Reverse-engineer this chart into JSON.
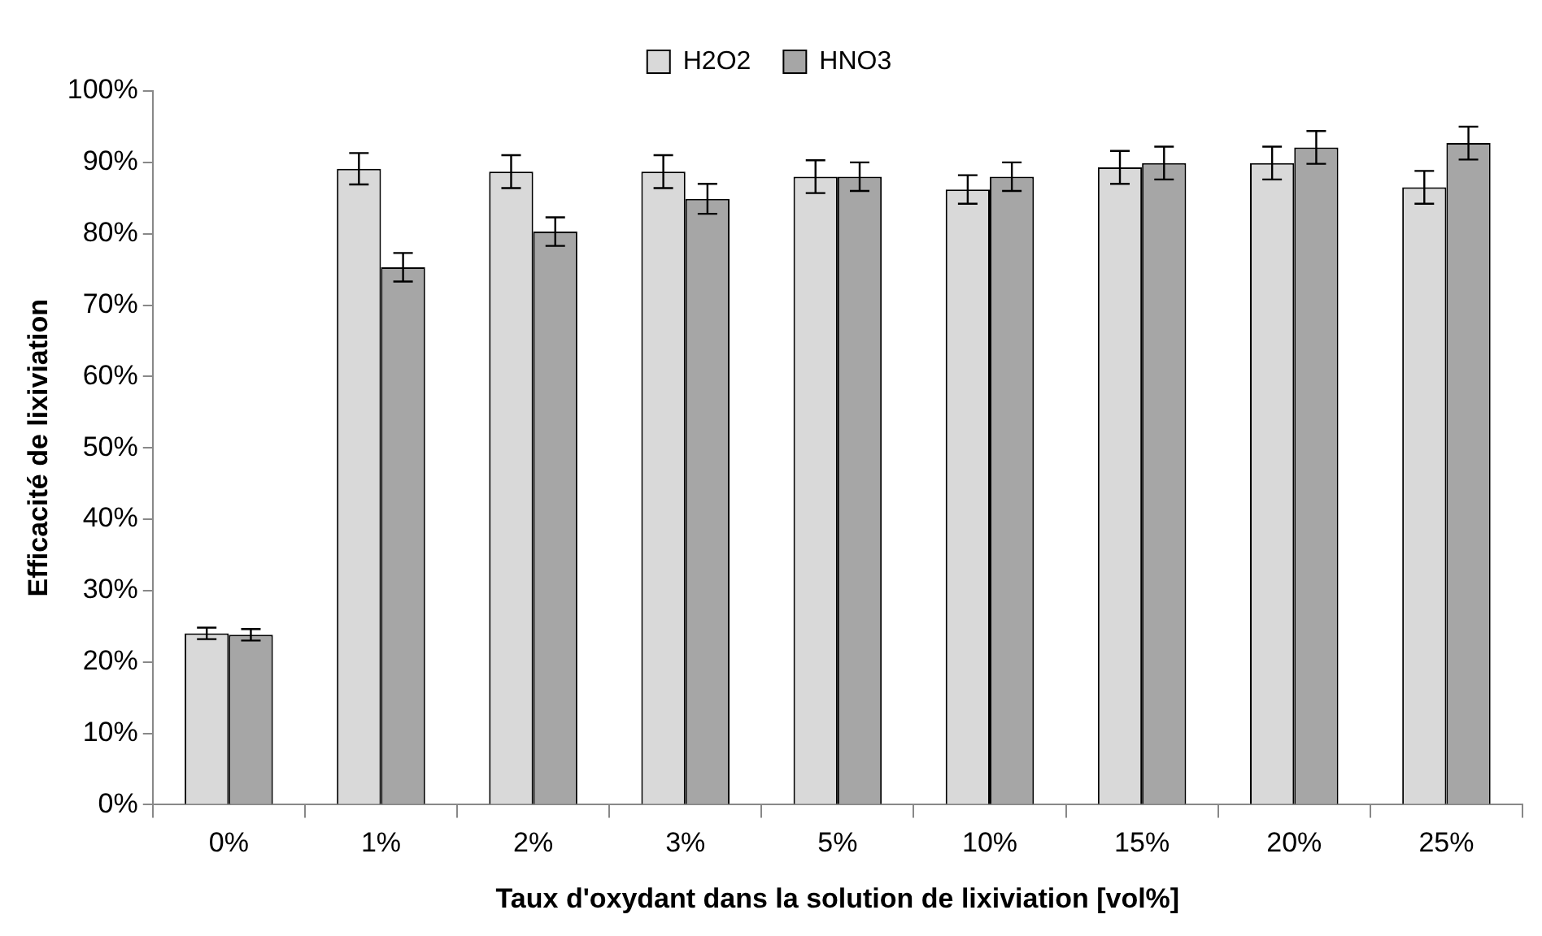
{
  "chart_data": {
    "type": "bar",
    "xlabel": "Taux d'oxydant dans la solution de lixiviation [vol%]",
    "ylabel": "Efficacité de lixiviation",
    "categories": [
      "0%",
      "1%",
      "2%",
      "3%",
      "5%",
      "10%",
      "15%",
      "20%",
      "25%"
    ],
    "series": [
      {
        "name": "H2O2",
        "color": "#d9d9d9",
        "values": [
          24.0,
          89.1,
          88.7,
          88.7,
          88.0,
          86.2,
          89.3,
          89.9,
          86.5
        ],
        "errors": [
          0.8,
          2.2,
          2.3,
          2.3,
          2.3,
          2.0,
          2.3,
          2.3,
          2.3
        ]
      },
      {
        "name": "HNO3",
        "color": "#a6a6a6",
        "values": [
          23.8,
          75.3,
          80.3,
          84.9,
          88.0,
          88.0,
          89.9,
          92.1,
          92.7
        ],
        "errors": [
          0.8,
          2.0,
          2.0,
          2.1,
          2.0,
          2.0,
          2.3,
          2.3,
          2.3
        ]
      }
    ],
    "ylim": [
      0,
      100
    ],
    "yticks": [
      {
        "value": 0,
        "label": "0%"
      },
      {
        "value": 10,
        "label": "10%"
      },
      {
        "value": 20,
        "label": "20%"
      },
      {
        "value": 30,
        "label": "30%"
      },
      {
        "value": 40,
        "label": "40%"
      },
      {
        "value": 50,
        "label": "50%"
      },
      {
        "value": 60,
        "label": "60%"
      },
      {
        "value": 70,
        "label": "70%"
      },
      {
        "value": 80,
        "label": "80%"
      },
      {
        "value": 90,
        "label": "90%"
      },
      {
        "value": 100,
        "label": "100%"
      }
    ],
    "grid": false,
    "legend": "top"
  }
}
